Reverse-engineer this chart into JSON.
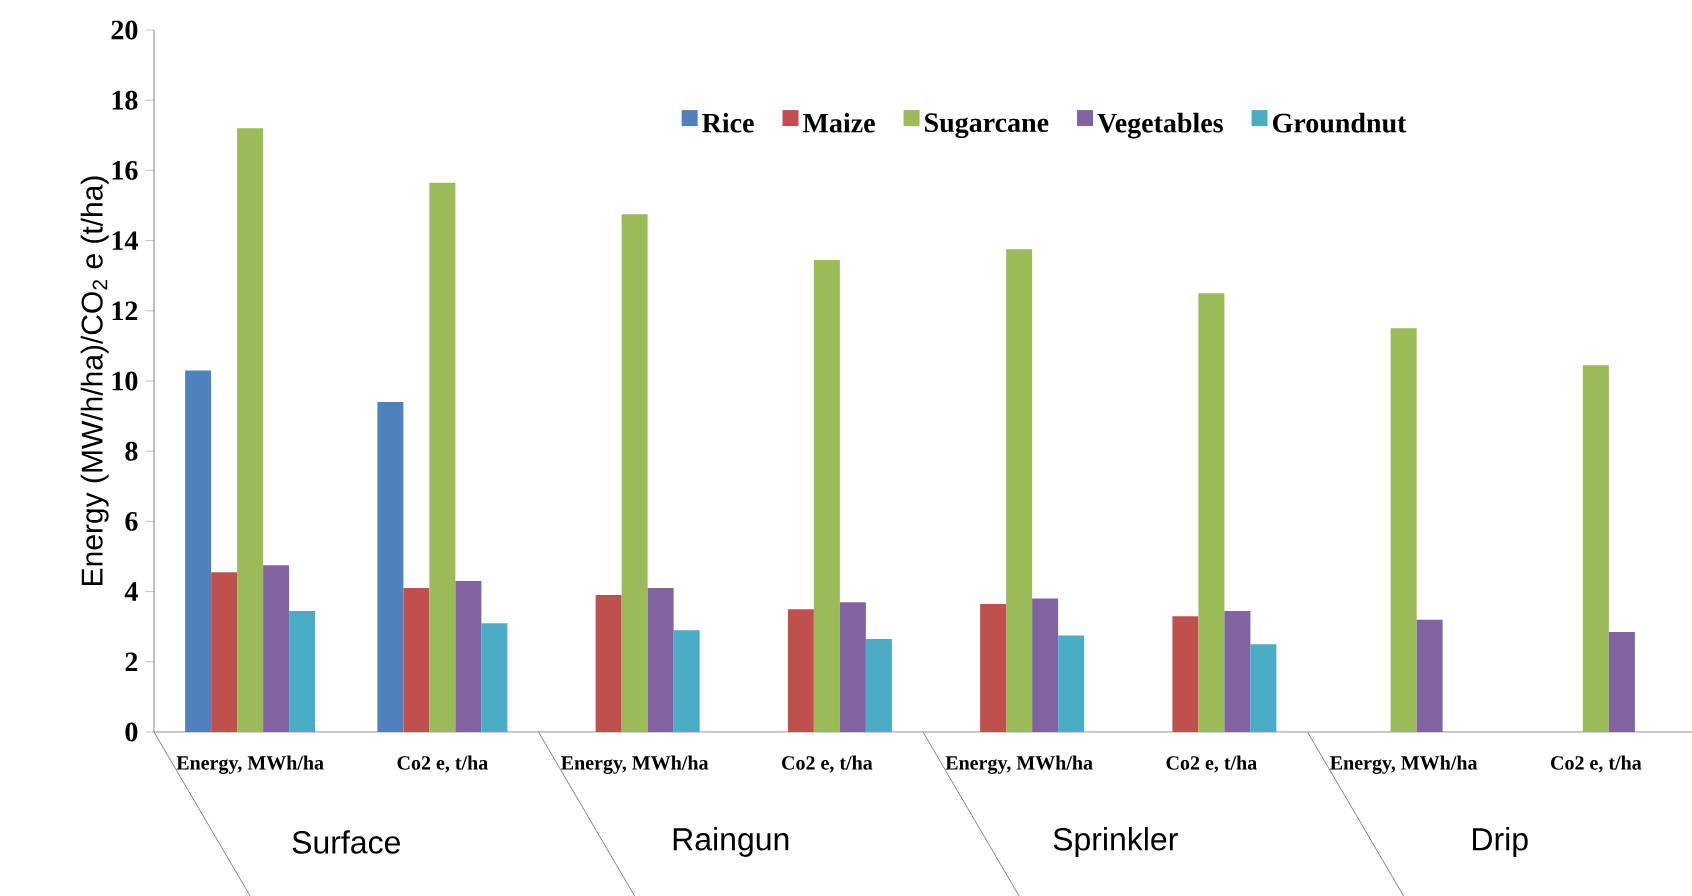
{
  "chart_data": {
    "type": "bar",
    "ylabel": "Energy (MW/h/ha)/CO$_{2}$ e (t/ha)",
    "categories": [
      "Energy, MWh/ha",
      "Co2 e, t/ha",
      "Energy, MWh/ha",
      "Co2 e, t/ha",
      "Energy, MWh/ha",
      "Co2 e, t/ha",
      "Energy, MWh/ha",
      "Co2 e, t/ha"
    ],
    "annotations": [
      "Surface",
      "Raingun",
      "Sprinkler",
      "Drip"
    ],
    "series": [
      {
        "name": "Rice",
        "color": "#4f81bd",
        "values": [
          10.3,
          9.4,
          null,
          null,
          null,
          null,
          null,
          null
        ]
      },
      {
        "name": "Maize",
        "color": "#c0504d",
        "values": [
          4.55,
          4.1,
          3.9,
          3.5,
          3.65,
          3.3,
          null,
          null
        ]
      },
      {
        "name": "Sugarcane",
        "color": "#9bbb59",
        "values": [
          17.2,
          15.65,
          14.75,
          13.45,
          13.75,
          12.5,
          11.5,
          10.45
        ]
      },
      {
        "name": "Vegetables",
        "color": "#8064a2",
        "values": [
          4.75,
          4.3,
          4.1,
          3.7,
          3.8,
          3.45,
          3.2,
          2.85
        ]
      },
      {
        "name": "Groundnut",
        "color": "#4bacc6",
        "values": [
          3.45,
          3.1,
          2.9,
          2.65,
          2.75,
          2.5,
          null,
          null
        ]
      }
    ],
    "ylim": [
      0,
      20
    ],
    "yticks": [
      0,
      2,
      4,
      6,
      8,
      10,
      12,
      14,
      16,
      18,
      20
    ],
    "legend": "top",
    "grid": false
  }
}
